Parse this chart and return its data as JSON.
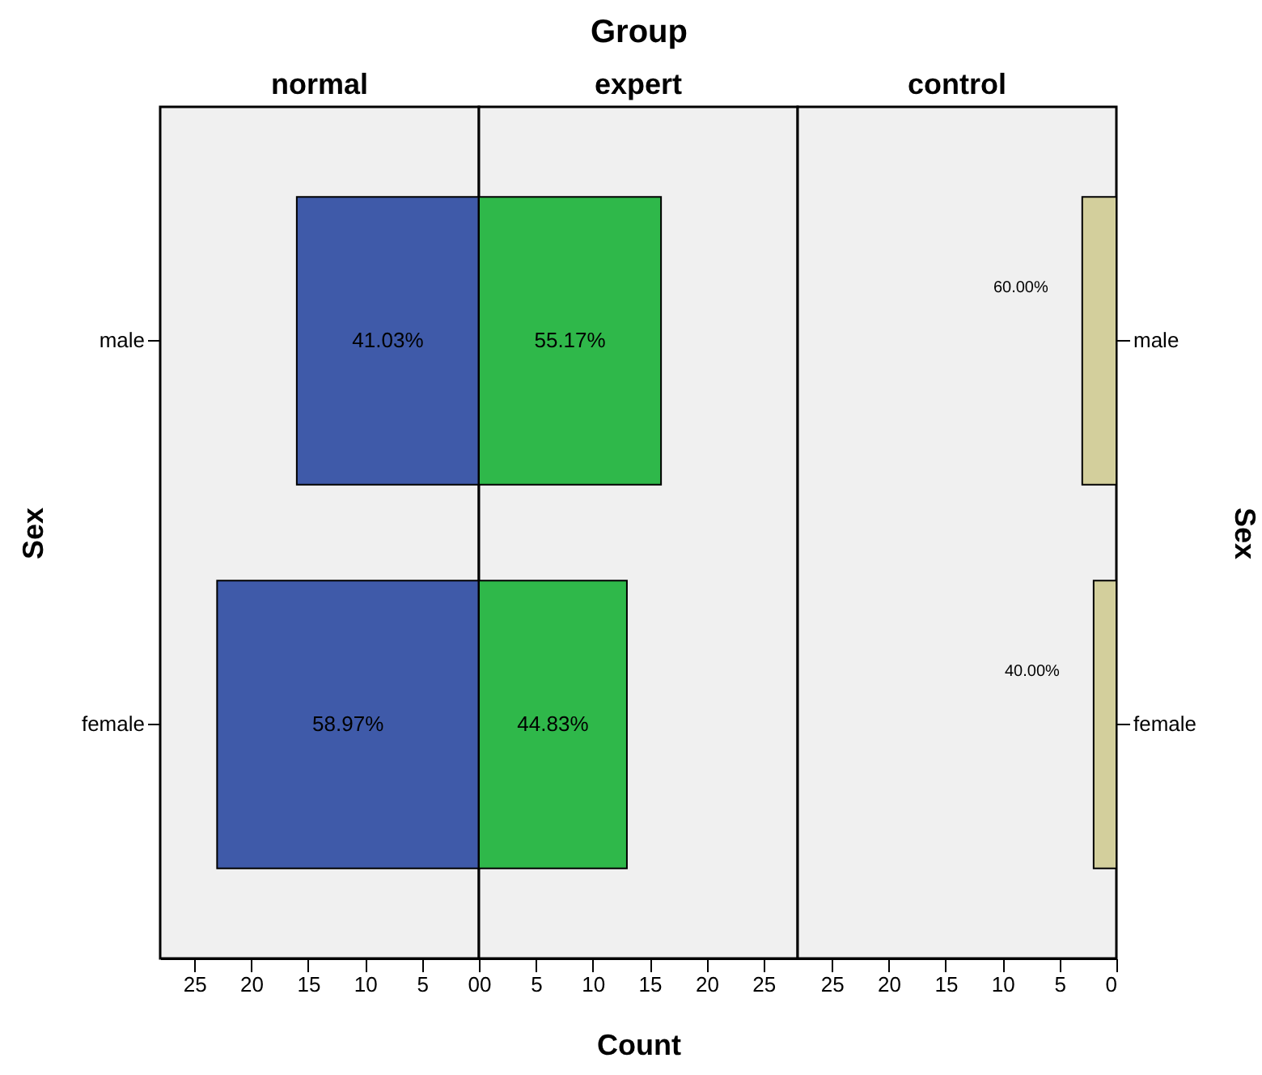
{
  "chart_data": [
    {
      "type": "bar",
      "orientation": "horizontal",
      "title": "normal",
      "ylabel": "Sex",
      "categories": [
        "male",
        "female"
      ],
      "series": [
        {
          "color": "#3f5aa9",
          "values": [
            16,
            23
          ]
        }
      ],
      "annotations": [
        "41.03%",
        "58.97%"
      ],
      "xlim": [
        28,
        0
      ],
      "xticks": [
        25,
        20,
        15,
        10,
        5,
        0
      ],
      "grid": false,
      "legend": false
    },
    {
      "type": "bar",
      "orientation": "horizontal",
      "title": "expert",
      "xlabel": "Count",
      "categories": [
        null,
        null
      ],
      "series": [
        {
          "color": "#2fb84a",
          "values": [
            16,
            13
          ]
        }
      ],
      "annotations": [
        "55.17%",
        "44.83%",
        "Group"
      ],
      "xlim": [
        0,
        28
      ],
      "xticks": [
        0,
        5,
        10,
        15,
        20,
        25
      ],
      "grid": false,
      "legend": false
    },
    {
      "type": "bar",
      "orientation": "horizontal",
      "title": "control",
      "ylabel": "Sex",
      "categories": [
        "male",
        "female"
      ],
      "series": [
        {
          "color": "#d3cf9c",
          "values": [
            3,
            2
          ]
        }
      ],
      "annotations": [
        "60.00%",
        "40.00%"
      ],
      "xlim": [
        28,
        0
      ],
      "xticks": [
        25,
        20,
        15,
        10,
        5,
        0
      ],
      "grid": false,
      "legend": false
    }
  ]
}
